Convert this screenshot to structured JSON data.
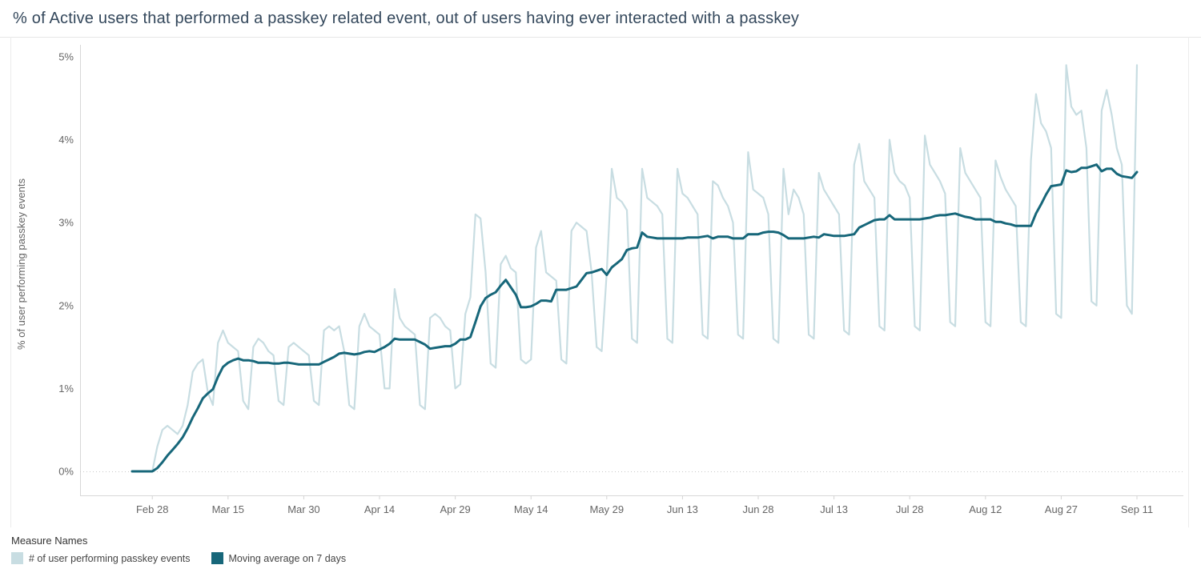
{
  "legend": {
    "title": "Measure Names"
  },
  "chart_data": {
    "type": "line",
    "title": "% of Active users that performed a passkey related event, out of users having ever interacted with a passkey",
    "ylabel": "% of user performing passkey events",
    "xlabel": "",
    "ylim": [
      0,
      5
    ],
    "y_ticks": [
      {
        "v": 0,
        "label": "0%"
      },
      {
        "v": 1,
        "label": "1%"
      },
      {
        "v": 2,
        "label": "2%"
      },
      {
        "v": 3,
        "label": "3%"
      },
      {
        "v": 4,
        "label": "4%"
      },
      {
        "v": 5,
        "label": "5%"
      }
    ],
    "x_start": "Feb 24",
    "x_step": "1 day",
    "x_ticks": [
      {
        "i": 4,
        "label": "Feb 28"
      },
      {
        "i": 19,
        "label": "Mar 15"
      },
      {
        "i": 34,
        "label": "Mar 30"
      },
      {
        "i": 49,
        "label": "Apr 14"
      },
      {
        "i": 64,
        "label": "Apr 29"
      },
      {
        "i": 79,
        "label": "May 14"
      },
      {
        "i": 94,
        "label": "May 29"
      },
      {
        "i": 109,
        "label": "Jun 13"
      },
      {
        "i": 124,
        "label": "Jun 28"
      },
      {
        "i": 139,
        "label": "Jul 13"
      },
      {
        "i": 154,
        "label": "Jul 28"
      },
      {
        "i": 169,
        "label": "Aug 12"
      },
      {
        "i": 184,
        "label": "Aug 27"
      },
      {
        "i": 199,
        "label": "Sep 11"
      }
    ],
    "grid": "dotted horizontal line at 0% only",
    "legend_position": "bottom-left",
    "series": [
      {
        "name": "# of user performing passkey events",
        "color": "#c8dde2",
        "values": [
          0,
          0,
          0,
          0,
          0,
          0.3,
          0.5,
          0.55,
          0.5,
          0.45,
          0.55,
          0.8,
          1.2,
          1.3,
          1.35,
          0.95,
          0.8,
          1.55,
          1.7,
          1.55,
          1.5,
          1.45,
          0.85,
          0.75,
          1.5,
          1.6,
          1.55,
          1.45,
          1.4,
          0.85,
          0.8,
          1.5,
          1.55,
          1.5,
          1.45,
          1.4,
          0.85,
          0.8,
          1.7,
          1.75,
          1.7,
          1.75,
          1.45,
          0.8,
          0.75,
          1.75,
          1.9,
          1.75,
          1.7,
          1.65,
          1.0,
          1.0,
          2.2,
          1.85,
          1.75,
          1.7,
          1.65,
          0.8,
          0.75,
          1.85,
          1.9,
          1.85,
          1.75,
          1.7,
          1.0,
          1.05,
          1.9,
          2.1,
          3.1,
          3.05,
          2.4,
          1.3,
          1.25,
          2.5,
          2.6,
          2.45,
          2.4,
          1.35,
          1.3,
          1.35,
          2.7,
          2.9,
          2.4,
          2.35,
          2.3,
          1.35,
          1.3,
          2.9,
          3.0,
          2.95,
          2.9,
          2.4,
          1.5,
          1.45,
          2.4,
          3.65,
          3.3,
          3.25,
          3.15,
          1.6,
          1.55,
          3.65,
          3.3,
          3.25,
          3.2,
          3.1,
          1.6,
          1.55,
          3.65,
          3.35,
          3.3,
          3.2,
          3.1,
          1.65,
          1.6,
          3.5,
          3.45,
          3.3,
          3.2,
          3.0,
          1.65,
          1.6,
          3.85,
          3.4,
          3.35,
          3.3,
          3.1,
          1.6,
          1.55,
          3.65,
          3.1,
          3.4,
          3.3,
          3.1,
          1.65,
          1.6,
          3.6,
          3.4,
          3.3,
          3.2,
          3.1,
          1.7,
          1.65,
          3.7,
          3.95,
          3.5,
          3.4,
          3.3,
          1.75,
          1.7,
          4.0,
          3.6,
          3.5,
          3.45,
          3.3,
          1.75,
          1.7,
          4.05,
          3.7,
          3.6,
          3.5,
          3.35,
          1.8,
          1.75,
          3.9,
          3.6,
          3.5,
          3.4,
          3.3,
          1.8,
          1.75,
          3.75,
          3.55,
          3.4,
          3.3,
          3.2,
          1.8,
          1.75,
          3.75,
          4.55,
          4.2,
          4.1,
          3.9,
          1.9,
          1.85,
          4.9,
          4.4,
          4.3,
          4.35,
          3.9,
          2.05,
          2.0,
          4.35,
          4.6,
          4.3,
          3.9,
          3.7,
          2.0,
          1.9,
          4.9
        ]
      },
      {
        "name": "Moving average on 7 days",
        "color": "#17677a",
        "values": [
          0,
          0,
          0,
          0,
          0,
          0.04,
          0.11,
          0.19,
          0.26,
          0.33,
          0.41,
          0.52,
          0.65,
          0.76,
          0.88,
          0.94,
          0.99,
          1.14,
          1.26,
          1.31,
          1.34,
          1.36,
          1.34,
          1.34,
          1.33,
          1.31,
          1.31,
          1.31,
          1.3,
          1.3,
          1.31,
          1.31,
          1.3,
          1.29,
          1.29,
          1.29,
          1.29,
          1.29,
          1.32,
          1.35,
          1.38,
          1.42,
          1.43,
          1.42,
          1.41,
          1.42,
          1.44,
          1.45,
          1.44,
          1.47,
          1.5,
          1.54,
          1.6,
          1.59,
          1.59,
          1.59,
          1.59,
          1.56,
          1.53,
          1.48,
          1.49,
          1.5,
          1.51,
          1.51,
          1.54,
          1.59,
          1.59,
          1.62,
          1.8,
          1.99,
          2.09,
          2.13,
          2.16,
          2.24,
          2.31,
          2.22,
          2.13,
          1.98,
          1.98,
          1.99,
          2.02,
          2.06,
          2.06,
          2.05,
          2.19,
          2.19,
          2.19,
          2.21,
          2.23,
          2.31,
          2.39,
          2.4,
          2.42,
          2.44,
          2.37,
          2.46,
          2.51,
          2.56,
          2.67,
          2.69,
          2.7,
          2.88,
          2.83,
          2.82,
          2.81,
          2.81,
          2.81,
          2.81,
          2.81,
          2.81,
          2.82,
          2.82,
          2.82,
          2.83,
          2.84,
          2.81,
          2.83,
          2.83,
          2.83,
          2.81,
          2.81,
          2.81,
          2.86,
          2.86,
          2.86,
          2.88,
          2.89,
          2.89,
          2.88,
          2.85,
          2.81,
          2.81,
          2.81,
          2.81,
          2.82,
          2.83,
          2.82,
          2.86,
          2.85,
          2.84,
          2.84,
          2.84,
          2.85,
          2.86,
          2.94,
          2.97,
          3.0,
          3.03,
          3.04,
          3.04,
          3.09,
          3.04,
          3.04,
          3.04,
          3.04,
          3.04,
          3.04,
          3.05,
          3.06,
          3.08,
          3.09,
          3.09,
          3.1,
          3.11,
          3.09,
          3.07,
          3.06,
          3.04,
          3.04,
          3.04,
          3.04,
          3.01,
          3.01,
          2.99,
          2.98,
          2.96,
          2.96,
          2.96,
          2.96,
          3.11,
          3.22,
          3.34,
          3.44,
          3.45,
          3.46,
          3.63,
          3.61,
          3.62,
          3.66,
          3.66,
          3.68,
          3.7,
          3.62,
          3.65,
          3.65,
          3.59,
          3.56,
          3.55,
          3.54,
          3.61
        ]
      }
    ]
  }
}
